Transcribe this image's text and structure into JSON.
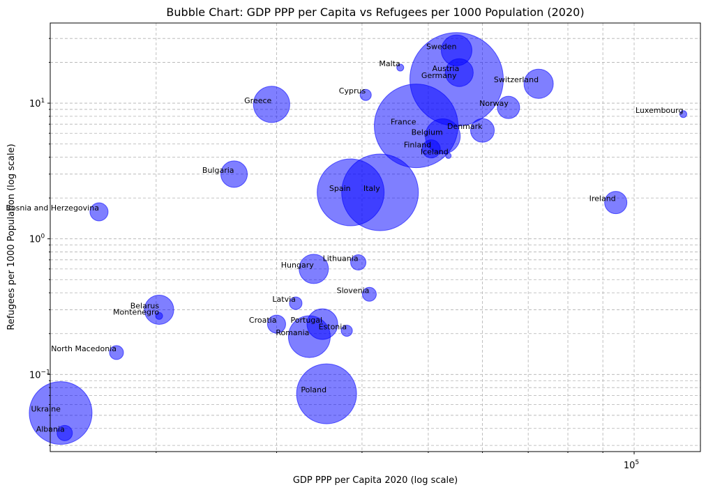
{
  "chart_data": {
    "type": "scatter",
    "title": "Bubble Chart: GDP PPP per Capita vs Refugees per 1000 Population (2020)",
    "xlabel": "GDP PPP per Capita 2020 (log scale)",
    "ylabel": "Refugees per 1000 Population (log scale)",
    "x_scale": "log",
    "y_scale": "log",
    "grid": true,
    "bubble_color": "#0000ff",
    "bubble_alpha": 0.5,
    "x_ticks": [
      {
        "value": 100000,
        "label": "10^5"
      }
    ],
    "y_ticks": [
      {
        "value": 0.1,
        "label": "10^-1"
      },
      {
        "value": 1,
        "label": "10^0"
      },
      {
        "value": 10,
        "label": "10^1"
      }
    ],
    "xlim": [
      14000,
      125000
    ],
    "ylim": [
      0.027,
      39
    ],
    "points": [
      {
        "label": "Sweden",
        "x": 55000,
        "y": 24.5,
        "size": 22
      },
      {
        "label": "Malta",
        "x": 45500,
        "y": 18.3,
        "size": 5
      },
      {
        "label": "Austria",
        "x": 55500,
        "y": 16.8,
        "size": 20
      },
      {
        "label": "Germany",
        "x": 55000,
        "y": 15.0,
        "size": 67
      },
      {
        "label": "Switzerland",
        "x": 72500,
        "y": 13.9,
        "size": 21
      },
      {
        "label": "Cyprus",
        "x": 40500,
        "y": 11.5,
        "size": 8
      },
      {
        "label": "Greece",
        "x": 29500,
        "y": 9.8,
        "size": 26
      },
      {
        "label": "Norway",
        "x": 65500,
        "y": 9.3,
        "size": 16
      },
      {
        "label": "Luxembourg",
        "x": 118000,
        "y": 8.3,
        "size": 5
      },
      {
        "label": "France",
        "x": 48000,
        "y": 6.8,
        "size": 60
      },
      {
        "label": "Denmark",
        "x": 60000,
        "y": 6.3,
        "size": 17
      },
      {
        "label": "Belgium",
        "x": 52500,
        "y": 5.7,
        "size": 25
      },
      {
        "label": "Finland",
        "x": 50500,
        "y": 4.6,
        "size": 13
      },
      {
        "label": "Iceland",
        "x": 53500,
        "y": 4.1,
        "size": 4
      },
      {
        "label": "Bulgaria",
        "x": 26000,
        "y": 3.0,
        "size": 19
      },
      {
        "label": "Spain",
        "x": 38500,
        "y": 2.2,
        "size": 48
      },
      {
        "label": "Italy",
        "x": 42500,
        "y": 2.2,
        "size": 55
      },
      {
        "label": "Bosnia and Herzegovina",
        "x": 16500,
        "y": 1.58,
        "size": 13
      },
      {
        "label": "Ireland",
        "x": 94000,
        "y": 1.85,
        "size": 16
      },
      {
        "label": "Lithuania",
        "x": 39500,
        "y": 0.67,
        "size": 11
      },
      {
        "label": "Hungary",
        "x": 34000,
        "y": 0.6,
        "size": 21
      },
      {
        "label": "Slovenia",
        "x": 41000,
        "y": 0.39,
        "size": 10
      },
      {
        "label": "Latvia",
        "x": 32000,
        "y": 0.335,
        "size": 9
      },
      {
        "label": "Belarus",
        "x": 20200,
        "y": 0.3,
        "size": 21
      },
      {
        "label": "Montenegro",
        "x": 20200,
        "y": 0.27,
        "size": 5
      },
      {
        "label": "Croatia",
        "x": 30000,
        "y": 0.235,
        "size": 13
      },
      {
        "label": "Portugal",
        "x": 35000,
        "y": 0.235,
        "size": 22
      },
      {
        "label": "Romania",
        "x": 33500,
        "y": 0.19,
        "size": 30
      },
      {
        "label": "Estonia",
        "x": 38000,
        "y": 0.21,
        "size": 8
      },
      {
        "label": "North Macedonia",
        "x": 17500,
        "y": 0.145,
        "size": 10
      },
      {
        "label": "Poland",
        "x": 35500,
        "y": 0.072,
        "size": 43
      },
      {
        "label": "Ukraine",
        "x": 14500,
        "y": 0.052,
        "size": 45
      },
      {
        "label": "Albania",
        "x": 14700,
        "y": 0.037,
        "size": 11
      }
    ]
  }
}
